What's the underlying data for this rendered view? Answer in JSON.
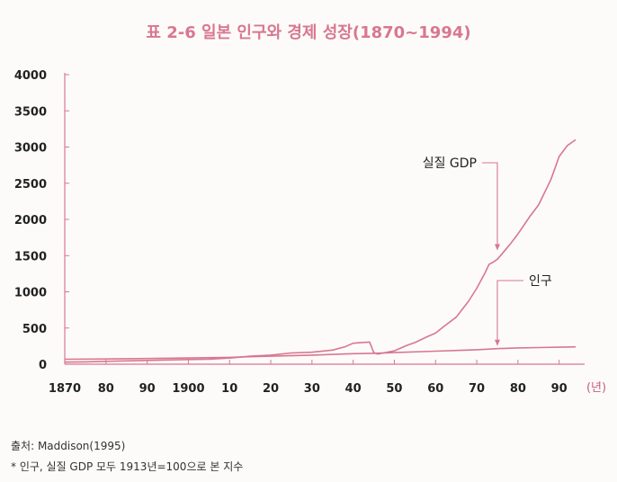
{
  "title": "표 2-6  일본 인구와 경제 성장(1870~1994)",
  "chart_data": {
    "type": "line",
    "title": "표 2-6  일본 인구와 경제 성장(1870~1994)",
    "xlabel": "(년)",
    "ylabel": "",
    "xlim": [
      1870,
      1994
    ],
    "ylim": [
      0,
      4000
    ],
    "y_ticks": [
      0,
      500,
      1000,
      1500,
      2000,
      2500,
      3000,
      3500,
      4000
    ],
    "y_tick_labels": [
      "0",
      "500",
      "1000",
      "1500",
      "2000",
      "2500",
      "3000",
      "3500",
      "4000"
    ],
    "x_ticks": [
      1870,
      1880,
      1890,
      1900,
      1910,
      1920,
      1930,
      1940,
      1950,
      1960,
      1970,
      1980,
      1990
    ],
    "x_tick_labels": [
      "1870",
      "80",
      "90",
      "1900",
      "10",
      "20",
      "30",
      "40",
      "50",
      "60",
      "70",
      "80",
      "90"
    ],
    "series": [
      {
        "name": "실질 GDP",
        "color": "#d9778f",
        "x": [
          1870,
          1875,
          1880,
          1885,
          1890,
          1895,
          1900,
          1905,
          1910,
          1913,
          1915,
          1920,
          1925,
          1930,
          1935,
          1938,
          1940,
          1942,
          1944,
          1945,
          1946,
          1950,
          1953,
          1955,
          1958,
          1960,
          1962,
          1965,
          1968,
          1970,
          1972,
          1973,
          1974,
          1975,
          1978,
          1980,
          1983,
          1985,
          1988,
          1990,
          1992,
          1994
        ],
        "values": [
          28,
          32,
          40,
          46,
          52,
          58,
          65,
          70,
          85,
          100,
          110,
          125,
          155,
          165,
          195,
          240,
          290,
          300,
          305,
          160,
          140,
          185,
          260,
          300,
          380,
          430,
          520,
          650,
          870,
          1050,
          1260,
          1380,
          1410,
          1450,
          1650,
          1800,
          2050,
          2200,
          2550,
          2870,
          3020,
          3100
        ]
      },
      {
        "name": "인구",
        "color": "#d9778f",
        "x": [
          1870,
          1880,
          1890,
          1900,
          1910,
          1913,
          1920,
          1930,
          1940,
          1945,
          1950,
          1960,
          1970,
          1975,
          1980,
          1985,
          1990,
          1994
        ],
        "values": [
          68,
          72,
          78,
          86,
          95,
          100,
          110,
          125,
          145,
          150,
          160,
          180,
          200,
          215,
          225,
          230,
          235,
          240
        ]
      }
    ],
    "annotations": [
      {
        "text": "실질 GDP",
        "series": "실질 GDP",
        "year": 1975
      },
      {
        "text": "인구",
        "series": "인구",
        "year": 1975
      }
    ],
    "legend": "none",
    "grid": false
  },
  "notes": {
    "source": "출처: Maddison(1995)",
    "footnote": "* 인구, 실질 GDP 모두 1913년=100으로 본 지수"
  }
}
